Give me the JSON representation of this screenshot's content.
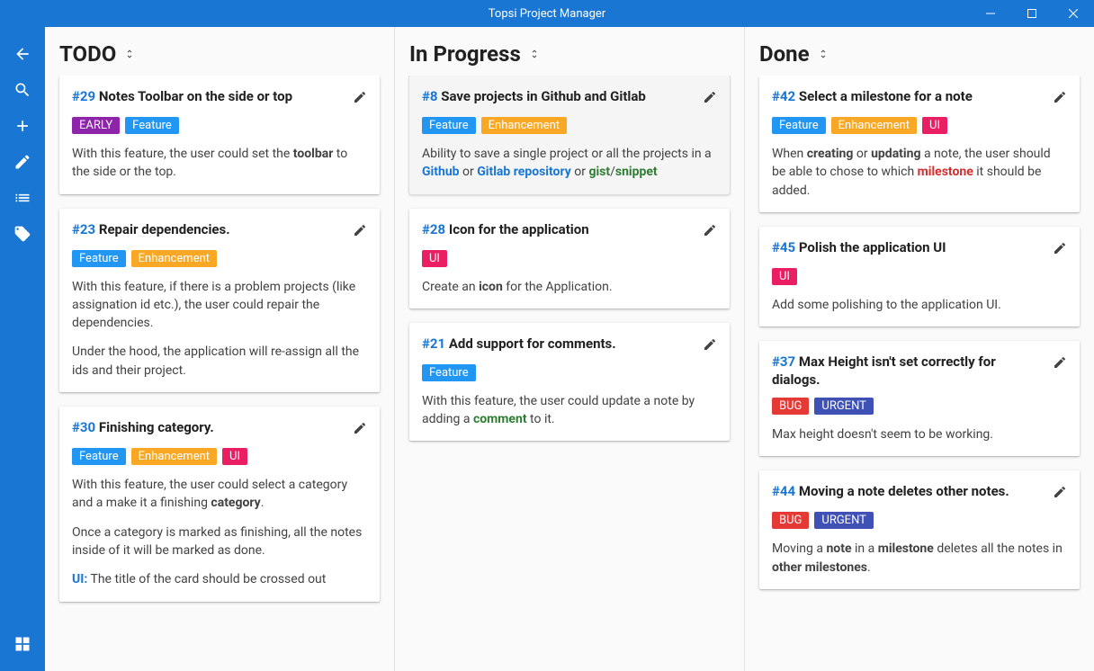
{
  "app": {
    "title": "Topsi Project Manager"
  },
  "colors": {
    "primary": "#1976d2",
    "tag_feature": "#2196f3",
    "tag_enhancement": "#f9a825",
    "tag_ui": "#e91e63",
    "tag_early": "#8e24aa",
    "tag_bug": "#e53935",
    "tag_urgent": "#3f51b5"
  },
  "columns": [
    {
      "title": "TODO",
      "cards": [
        {
          "id": "#29",
          "title": "Notes Toolbar on the side or top",
          "tags": [
            {
              "label": "EARLY",
              "color": "#8e24aa"
            },
            {
              "label": "Feature",
              "color": "#2196f3"
            }
          ],
          "body_html": "<p>With this feature, the user could set the <strong>toolbar</strong> to the side or the top.</p>"
        },
        {
          "id": "#23",
          "title": "Repair dependencies.",
          "tags": [
            {
              "label": "Feature",
              "color": "#2196f3"
            },
            {
              "label": "Enhancement",
              "color": "#f9a825"
            }
          ],
          "body_html": "<p>With this feature, if there is a problem projects (like assignation id etc.), the user could repair the dependencies.</p><p>Under the hood, the application will re-assign all the ids and their project.</p>"
        },
        {
          "id": "#30",
          "title": "Finishing category.",
          "tags": [
            {
              "label": "Feature",
              "color": "#2196f3"
            },
            {
              "label": "Enhancement",
              "color": "#f9a825"
            },
            {
              "label": "UI",
              "color": "#e91e63"
            }
          ],
          "body_html": "<p>With this feature, the user could select a category and a make it a finishing <strong>category</strong>.</p><p>Once a category is marked as finishing, all the notes inside of it will be marked as done.</p><p><span class=\"hl-blue\">UI:</span> The title of the card should be crossed out</p>"
        }
      ]
    },
    {
      "title": "In Progress",
      "cards": [
        {
          "id": "#8",
          "title": "Save projects in Github and Gitlab",
          "selected": true,
          "tags": [
            {
              "label": "Feature",
              "color": "#2196f3"
            },
            {
              "label": "Enhancement",
              "color": "#f9a825"
            }
          ],
          "body_html": "<p>Ability to save a single project or all the projects in a <span class=\"hl-blue\">Github</span> or <span class=\"hl-blue\">Gitlab repository</span> or <span class=\"hl-green\">gist</span>/<span class=\"hl-green\">snippet</span></p>"
        },
        {
          "id": "#28",
          "title": "Icon for the application",
          "tags": [
            {
              "label": "UI",
              "color": "#e91e63"
            }
          ],
          "body_html": "<p>Create an <strong>icon</strong> for the Application.</p>"
        },
        {
          "id": "#21",
          "title": "Add support for comments.",
          "tags": [
            {
              "label": "Feature",
              "color": "#2196f3"
            }
          ],
          "body_html": "<p>With this feature, the user could update a note by adding a <span class=\"hl-green\">comment</span> to it.</p>"
        }
      ]
    },
    {
      "title": "Done",
      "cards": [
        {
          "id": "#42",
          "title": "Select a milestone for a note",
          "tags": [
            {
              "label": "Feature",
              "color": "#2196f3"
            },
            {
              "label": "Enhancement",
              "color": "#f9a825"
            },
            {
              "label": "UI",
              "color": "#e91e63"
            }
          ],
          "body_html": "<p>When <strong>creating</strong> or <strong>updating</strong> a note, the user should be able to chose to which <span class=\"hl-red\">milestone</span> it should be added.</p>"
        },
        {
          "id": "#45",
          "title": "Polish the application UI",
          "tags": [
            {
              "label": "UI",
              "color": "#e91e63"
            }
          ],
          "body_html": "<p>Add some polishing to the application UI.</p>"
        },
        {
          "id": "#37",
          "title": "Max Height isn't set correctly for dialogs.",
          "tags": [
            {
              "label": "BUG",
              "color": "#e53935"
            },
            {
              "label": "URGENT",
              "color": "#3f51b5"
            }
          ],
          "body_html": "<p>Max height doesn't seem to be working.</p>"
        },
        {
          "id": "#44",
          "title": "Moving a note deletes other notes.",
          "tags": [
            {
              "label": "BUG",
              "color": "#e53935"
            },
            {
              "label": "URGENT",
              "color": "#3f51b5"
            }
          ],
          "body_html": "<p>Moving a <strong>note</strong> in a <strong>milestone</strong> deletes all the notes in <strong>other milestones</strong>.</p>"
        }
      ]
    }
  ]
}
